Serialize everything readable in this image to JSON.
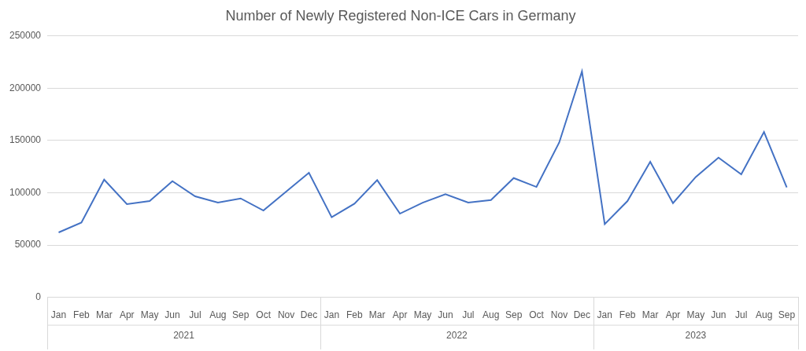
{
  "chart_data": {
    "type": "line",
    "title": "Number of Newly Registered Non-ICE Cars in Germany",
    "categories": [
      "Jan",
      "Feb",
      "Mar",
      "Apr",
      "May",
      "Jun",
      "Jul",
      "Aug",
      "Sep",
      "Oct",
      "Nov",
      "Dec",
      "Jan",
      "Feb",
      "Mar",
      "Apr",
      "May",
      "Jun",
      "Jul",
      "Aug",
      "Sep",
      "Oct",
      "Nov",
      "Dec",
      "Jan",
      "Feb",
      "Mar",
      "Apr",
      "May",
      "Jun",
      "Jul",
      "Aug",
      "Sep"
    ],
    "category_groups": [
      {
        "label": "2021",
        "count": 12
      },
      {
        "label": "2022",
        "count": 12
      },
      {
        "label": "2023",
        "count": 9
      }
    ],
    "values": [
      62000,
      71500,
      112500,
      89000,
      92000,
      111000,
      96500,
      90500,
      94500,
      83000,
      101000,
      119000,
      76500,
      89500,
      112000,
      80000,
      90500,
      98500,
      90500,
      93000,
      114000,
      105500,
      148000,
      216000,
      70000,
      92000,
      129500,
      90000,
      115000,
      133500,
      117500,
      158000,
      105000
    ],
    "color": "#4472c4",
    "ylim": [
      0,
      250000
    ],
    "yticks": [
      0,
      50000,
      100000,
      150000,
      200000,
      250000
    ],
    "grid": true
  }
}
